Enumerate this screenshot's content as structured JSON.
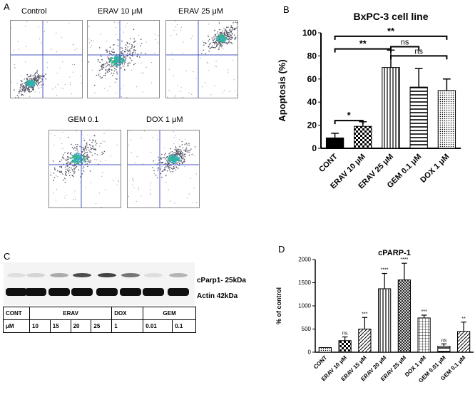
{
  "panels": {
    "a": "A",
    "b": "B",
    "c": "C",
    "d": "D"
  },
  "flow_titles": [
    "Control",
    "ERAV 10 μM",
    "ERAV 25 μM",
    "GEM 0.1",
    "DOX 1 μM"
  ],
  "blot": {
    "band1_label": "cParp1- 25kDa",
    "band2_label": "Actin 42kDa",
    "table": {
      "row1": [
        "CONT",
        "ERAV",
        "DOX",
        "GEM"
      ],
      "row2": [
        "μM",
        "10",
        "15",
        "20",
        "25",
        "1",
        "0.01",
        "0.1"
      ]
    }
  },
  "chart_data": [
    {
      "type": "bar",
      "title": "BxPC-3 cell line",
      "ylabel": "Apoptosis (%)",
      "xlabel": "",
      "ylim": [
        0,
        100
      ],
      "yticks": [
        0,
        20,
        40,
        60,
        80,
        100
      ],
      "categories": [
        "CONT",
        "ERAV 10 μM",
        "ERAV 25 μM",
        "GEM 0.1 μM",
        "DOX 1 μM"
      ],
      "values": [
        9,
        19,
        70,
        53,
        50
      ],
      "errors": [
        4,
        4,
        15,
        16,
        10
      ],
      "patterns": [
        "solid",
        "checker",
        "vlines",
        "hlines",
        "dots"
      ],
      "significance": [
        {
          "from": 0,
          "to": 1,
          "label": "*"
        },
        {
          "from": 0,
          "to": 2,
          "label": "**"
        },
        {
          "from": 2,
          "to": 3,
          "label": "ns"
        },
        {
          "from": 2,
          "to": 4,
          "label": "ns"
        },
        {
          "from": 0,
          "to": 4,
          "label": "**"
        }
      ]
    },
    {
      "type": "bar",
      "title": "cPARP-1",
      "ylabel": "% of control",
      "xlabel": "",
      "ylim": [
        0,
        2000
      ],
      "yticks": [
        0,
        500,
        1000,
        1500,
        2000
      ],
      "categories": [
        "CONT",
        "ERAV 10 μM",
        "ERAV 15 μM",
        "ERAV 20 μM",
        "ERAV 25 μM",
        "DOX 1 μM",
        "GEM 0.01 μM",
        "GEM 0.1 μM"
      ],
      "values": [
        100,
        250,
        500,
        1370,
        1560,
        740,
        130,
        450
      ],
      "errors": [
        0,
        80,
        250,
        330,
        360,
        60,
        50,
        200
      ],
      "patterns": [
        "dots",
        "checker",
        "diag",
        "vlines",
        "diag2",
        "grid",
        "hlines",
        "diag"
      ],
      "annotations": [
        "",
        "ns",
        "***",
        "****",
        "****",
        "***",
        "ns",
        "**"
      ]
    }
  ]
}
